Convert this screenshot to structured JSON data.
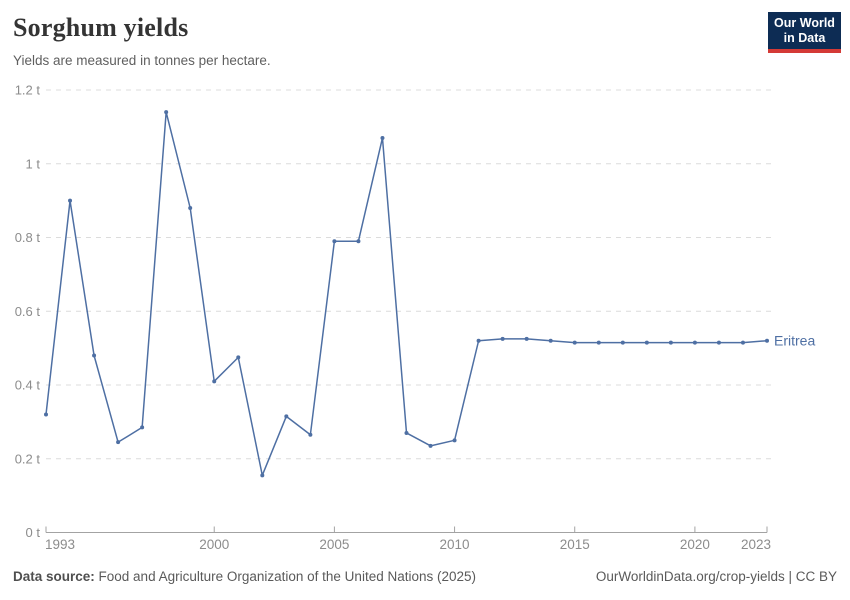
{
  "header": {
    "title": "Sorghum yields",
    "subtitle": "Yields are measured in tonnes per hectare.",
    "logo": {
      "line1": "Our World",
      "line2": "in Data"
    }
  },
  "chart_data": {
    "type": "line",
    "title": "Sorghum yields",
    "ylabel": "tonnes per hectare",
    "xlim": [
      1993,
      2023
    ],
    "ylim": [
      0,
      1.2
    ],
    "grid": "horizontal-dashed",
    "legend_position": "end-of-line-label",
    "xticks": [
      1993,
      2000,
      2005,
      2010,
      2015,
      2020,
      2023
    ],
    "yticks": [
      0,
      0.2,
      0.4,
      0.6,
      0.8,
      1,
      1.2
    ],
    "ytick_labels": [
      "0 t",
      "0.2 t",
      "0.4 t",
      "0.6 t",
      "0.8 t",
      "1 t",
      "1.2 t"
    ],
    "x": [
      1993,
      1994,
      1995,
      1996,
      1997,
      1998,
      1999,
      2000,
      2001,
      2002,
      2003,
      2004,
      2005,
      2006,
      2007,
      2008,
      2009,
      2010,
      2011,
      2012,
      2013,
      2014,
      2015,
      2016,
      2017,
      2018,
      2019,
      2020,
      2021,
      2022,
      2023
    ],
    "series": [
      {
        "name": "Eritrea",
        "color": "#4e6fa3",
        "values": [
          0.32,
          0.9,
          0.48,
          0.245,
          0.285,
          1.14,
          0.88,
          0.41,
          0.475,
          0.155,
          0.315,
          0.265,
          0.79,
          0.79,
          1.07,
          0.27,
          0.235,
          0.25,
          0.52,
          0.525,
          0.525,
          0.52,
          0.515,
          0.515,
          0.515,
          0.515,
          0.515,
          0.515,
          0.515,
          0.515,
          0.52
        ]
      }
    ]
  },
  "colors": {
    "line": "#4e6fa3",
    "grid": "#dcdcdc",
    "axis": "#a3a3a3",
    "tick_text": "#8c8c8c",
    "logo_bg": "#0d2c54",
    "logo_stripe": "#d43a36"
  },
  "footer": {
    "source_label": "Data source:",
    "source_text": " Food and Agriculture Organization of the United Nations (2025)",
    "link_text": "OurWorldinData.org/crop-yields | CC BY"
  }
}
